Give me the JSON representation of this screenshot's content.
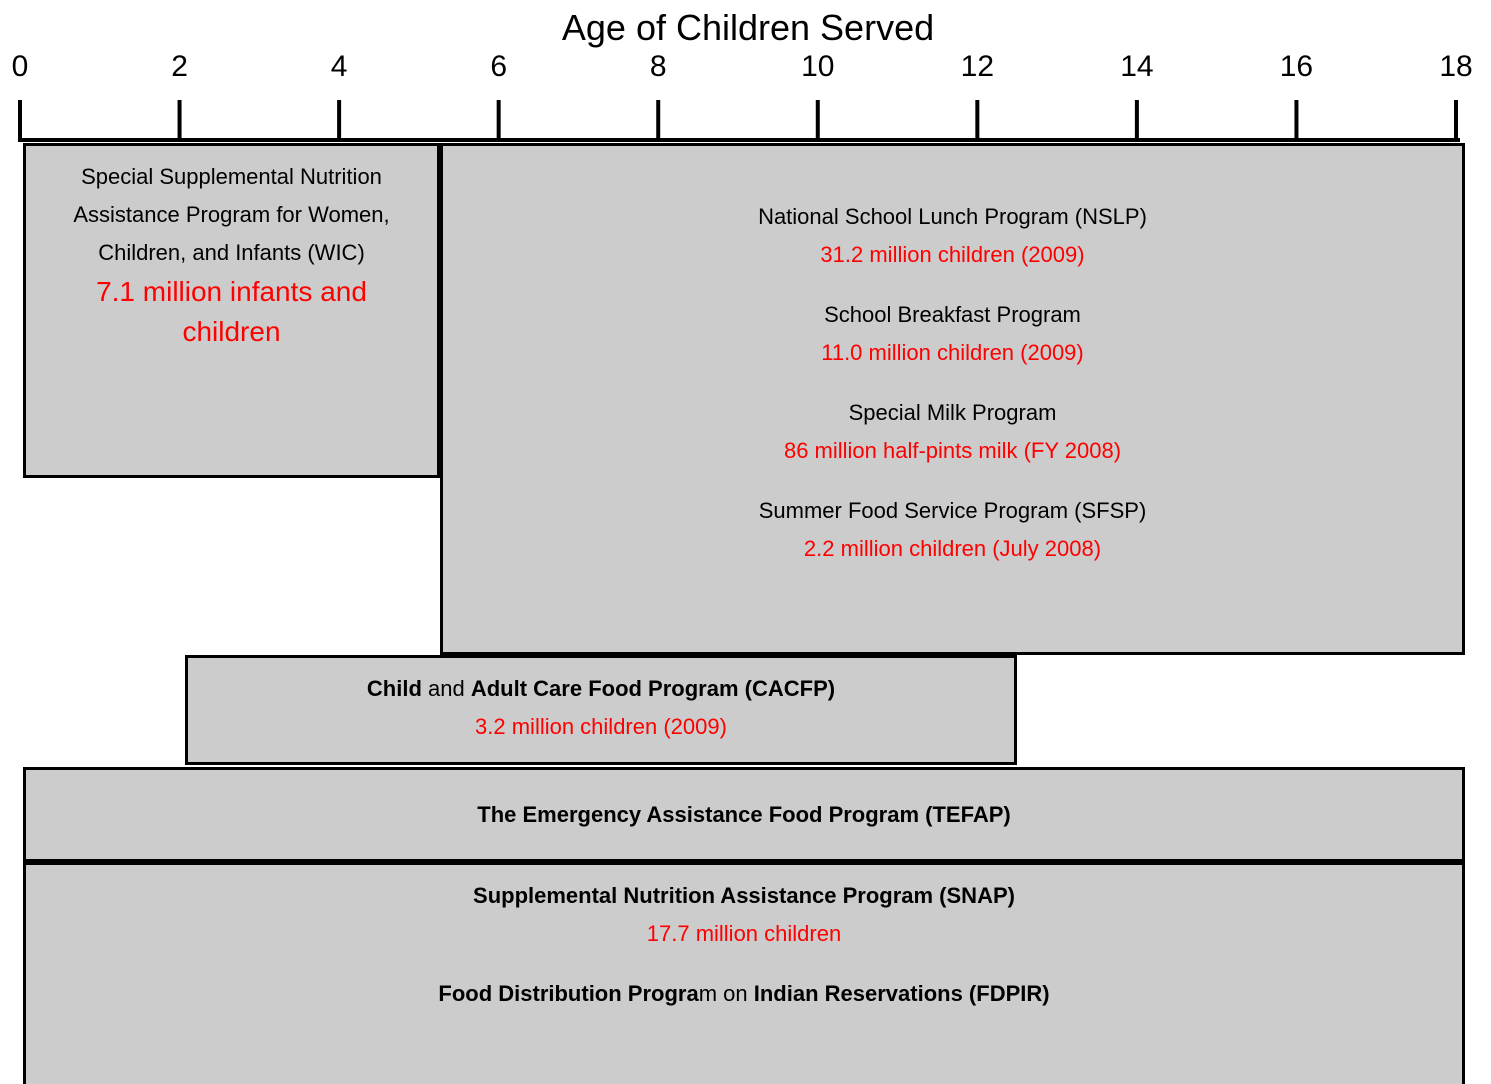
{
  "axis": {
    "title": "Age of Children Served",
    "ticks": [
      0,
      2,
      4,
      6,
      8,
      10,
      12,
      14,
      16,
      18
    ]
  },
  "boxes": [
    {
      "items": [
        {
          "name": [
            {
              "text": "Special Supplemental Nutrition Assistance Program for Women, Children, and Infants (WIC)",
              "bold": false
            }
          ],
          "served": "7.1 million infants and children"
        }
      ]
    },
    {
      "items": [
        {
          "name": [
            {
              "text": "National School Lunch Program (NSLP)",
              "bold": false
            }
          ],
          "served": "31.2 million children (2009)"
        },
        {
          "name": [
            {
              "text": "School Breakfast Program",
              "bold": false
            }
          ],
          "served": "11.0 million children (2009)"
        },
        {
          "name": [
            {
              "text": "Special Milk Program",
              "bold": false
            }
          ],
          "served": "86 million half-pints milk (FY 2008)"
        },
        {
          "name": [
            {
              "text": "Summer Food Service Program (SFSP)",
              "bold": false
            }
          ],
          "served": "2.2 million children (July 2008)"
        }
      ]
    },
    {
      "items": [
        {
          "name": [
            {
              "text": "Child",
              "bold": true
            },
            {
              "text": " and ",
              "bold": false
            },
            {
              "text": "Adult Care Food Program (CACFP)",
              "bold": true
            }
          ],
          "served": "3.2 million children (2009)"
        }
      ]
    },
    {
      "items": [
        {
          "name": [
            {
              "text": "The Emergency Assistance Food Program (TEFAP)",
              "bold": true
            }
          ]
        }
      ]
    },
    {
      "items": [
        {
          "name": [
            {
              "text": "Supplemental Nutrition Assistance Program (SNAP)",
              "bold": true
            }
          ],
          "served": "17.7 million children"
        },
        {
          "name": [
            {
              "text": "Food Distribution Progra",
              "bold": true
            },
            {
              "text": "m on ",
              "bold": false
            },
            {
              "text": "Indian Reservations (FDPIR)",
              "bold": true
            }
          ]
        }
      ]
    }
  ]
}
